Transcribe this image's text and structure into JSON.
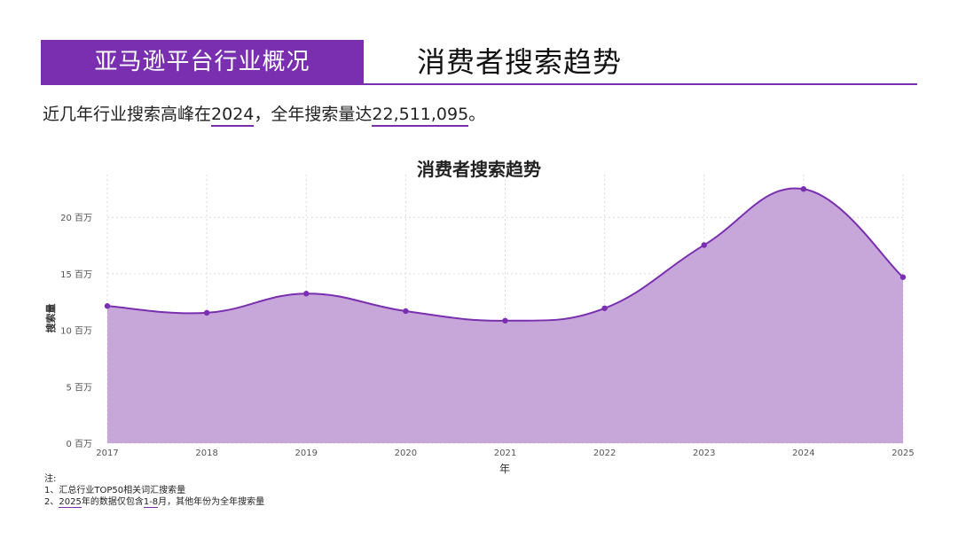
{
  "header": {
    "section_title": "亚马逊平台行业概况",
    "page_title": "消费者搜索趋势"
  },
  "summary": {
    "prefix": "近几年行业搜索高峰在",
    "peak_year": "2024",
    "middle": "，全年搜索量达",
    "peak_value": "22,511,095",
    "suffix": "。"
  },
  "chart_data": {
    "type": "area",
    "title": "消费者搜索趋势",
    "xlabel": "年",
    "ylabel": "搜索量",
    "categories": [
      "2017",
      "2018",
      "2019",
      "2020",
      "2021",
      "2022",
      "2023",
      "2024",
      "2025"
    ],
    "series": [
      {
        "values": [
          12150000,
          11550000,
          13250000,
          11700000,
          10850000,
          11950000,
          17550000,
          22511095,
          14700000
        ]
      }
    ],
    "ylim": [
      0,
      23000000
    ],
    "yticks": [
      {
        "value": 0,
        "label": "0 百万"
      },
      {
        "value": 5000000,
        "label": "5 百万"
      },
      {
        "value": 10000000,
        "label": "10 百万"
      },
      {
        "value": 15000000,
        "label": "15 百万"
      },
      {
        "value": 20000000,
        "label": "20 百万"
      }
    ],
    "grid": true,
    "colors": {
      "line": "#7a2fb0",
      "fill": "#c7a6d9",
      "grid": "#d9d9d9"
    }
  },
  "notes": {
    "heading": "注:",
    "line1": "1、汇总行业TOP50相关词汇搜索量",
    "line2_a": "2、",
    "line2_year": "2025",
    "line2_b": "年的数据仅包含",
    "line2_range": "1-8",
    "line2_c": "月，其他年份为全年搜索量"
  }
}
